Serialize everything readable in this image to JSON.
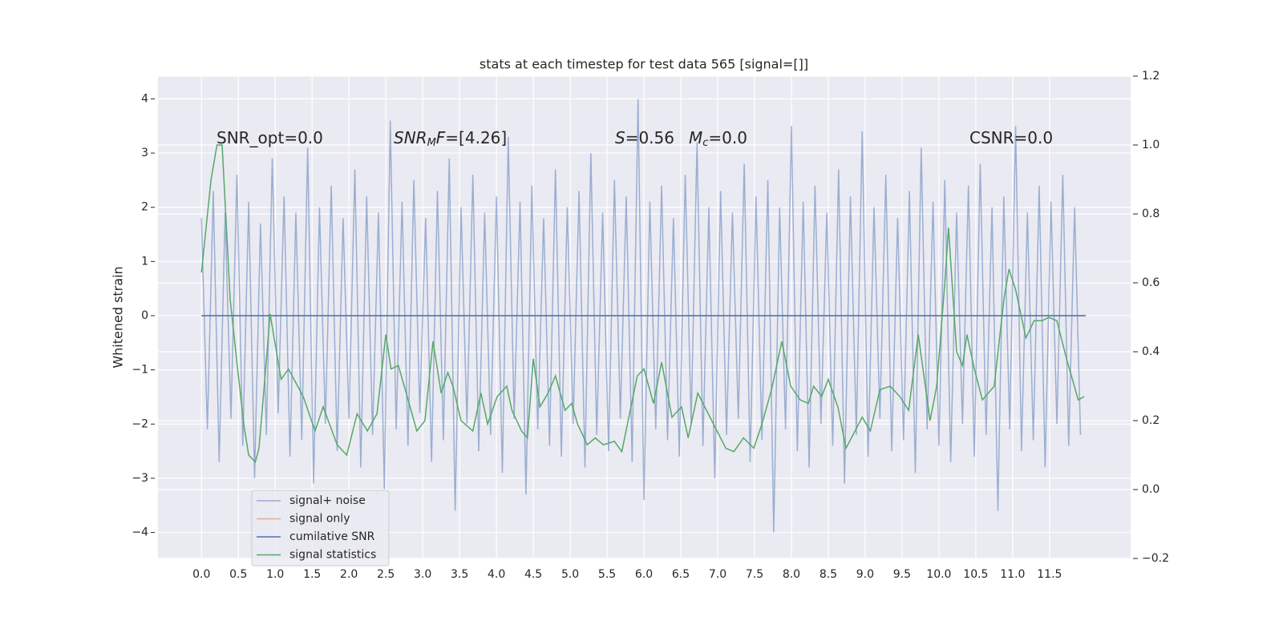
{
  "chart_data": {
    "type": "line",
    "title": "stats at each timestep for test data 565 [signal=[]]",
    "y_label": "Whitened strain",
    "xlim": [
      -0.59,
      12.6
    ],
    "ylim": [
      -4.48,
      4.42
    ],
    "y2lim": [
      -0.2,
      1.2
    ],
    "xticks": [
      {
        "value": 0,
        "label": "0.0"
      },
      0.5,
      {
        "value": 1,
        "label": "1.0"
      },
      1.5,
      {
        "value": 2,
        "label": "2.0"
      },
      2.5,
      {
        "value": 3,
        "label": "3.0"
      },
      3.5,
      {
        "value": 4,
        "label": "4.0"
      },
      4.5,
      {
        "value": 5,
        "label": "5.0"
      },
      5.5,
      {
        "value": 6,
        "label": "6.0"
      },
      6.5,
      {
        "value": 7,
        "label": "7.0"
      },
      7.5,
      {
        "value": 8,
        "label": "8.0"
      },
      8.5,
      {
        "value": 9,
        "label": "9.0"
      },
      9.5,
      {
        "value": 10,
        "label": "10.0"
      },
      10.5,
      {
        "value": 11,
        "label": "11.0"
      },
      11.5
    ],
    "yticks": [
      {
        "value": -4,
        "label": "−4"
      },
      {
        "value": -3,
        "label": "−3"
      },
      {
        "value": -2,
        "label": "−2"
      },
      {
        "value": -1,
        "label": "−1"
      },
      0,
      1,
      2,
      3,
      4
    ],
    "y2ticks": [
      {
        "value": -0.2,
        "label": "−0.2"
      },
      {
        "value": 0,
        "label": "0.0"
      },
      0.2,
      0.4,
      0.6,
      0.8,
      {
        "value": 1,
        "label": "1.0"
      },
      1.2
    ],
    "grid": true,
    "legend_loc": "lower left",
    "annotations": [
      {
        "parts": [
          {
            "text": "SNR_opt=0.0",
            "style": "normal"
          }
        ]
      },
      {
        "parts": [
          {
            "text": "SNR",
            "style": "italic"
          },
          {
            "text": "M",
            "style": "subscript"
          },
          {
            "text": "F",
            "style": "italic"
          },
          {
            "text": "=[4.26]",
            "style": "normal"
          }
        ]
      },
      {
        "parts": [
          {
            "text": "S",
            "style": "italic"
          },
          {
            "text": "=0.56",
            "style": "normal"
          }
        ]
      },
      {
        "parts": [
          {
            "text": "M",
            "style": "italic"
          },
          {
            "text": "c",
            "style": "subscript"
          },
          {
            "text": "=0.0",
            "style": "normal"
          }
        ]
      },
      {
        "parts": [
          {
            "text": "CSNR=0.0",
            "style": "normal"
          }
        ]
      }
    ],
    "series": [
      {
        "name": "signal+ noise",
        "color": "#4c72b0",
        "opacity": 0.5,
        "axis": "y",
        "x": [
          0,
          0.08,
          0.16,
          0.24,
          0.32,
          0.4,
          0.48,
          0.56,
          0.64,
          0.72,
          0.8,
          0.88,
          0.96,
          1.04,
          1.12,
          1.2,
          1.28,
          1.36,
          1.44,
          1.52,
          1.6,
          1.68,
          1.76,
          1.84,
          1.92,
          2,
          2.08,
          2.16,
          2.24,
          2.32,
          2.4,
          2.48,
          2.56,
          2.64,
          2.72,
          2.8,
          2.88,
          2.96,
          3.04,
          3.12,
          3.2,
          3.28,
          3.36,
          3.44,
          3.52,
          3.6,
          3.68,
          3.76,
          3.84,
          3.92,
          4,
          4.08,
          4.16,
          4.24,
          4.32,
          4.4,
          4.48,
          4.56,
          4.64,
          4.72,
          4.8,
          4.88,
          4.96,
          5.04,
          5.12,
          5.2,
          5.28,
          5.36,
          5.44,
          5.52,
          5.6,
          5.68,
          5.76,
          5.84,
          5.92,
          6,
          6.08,
          6.16,
          6.24,
          6.32,
          6.4,
          6.48,
          6.56,
          6.64,
          6.72,
          6.8,
          6.88,
          6.96,
          7.04,
          7.12,
          7.2,
          7.28,
          7.36,
          7.44,
          7.52,
          7.6,
          7.68,
          7.76,
          7.84,
          7.92,
          8,
          8.08,
          8.16,
          8.24,
          8.32,
          8.4,
          8.48,
          8.56,
          8.64,
          8.72,
          8.8,
          8.88,
          8.96,
          9.04,
          9.12,
          9.2,
          9.28,
          9.36,
          9.44,
          9.52,
          9.6,
          9.68,
          9.76,
          9.84,
          9.92,
          10,
          10.08,
          10.16,
          10.24,
          10.32,
          10.4,
          10.48,
          10.56,
          10.64,
          10.72,
          10.8,
          10.88,
          10.96,
          11.04,
          11.12,
          11.2,
          11.28,
          11.36,
          11.44,
          11.52,
          11.6,
          11.68,
          11.76,
          11.84,
          11.92
        ],
        "values": [
          1.8,
          -2.1,
          2.3,
          -2.7,
          1.9,
          -1.9,
          2.6,
          -2.4,
          2.1,
          -3.0,
          1.7,
          -2.2,
          2.9,
          -1.8,
          2.2,
          -2.6,
          1.9,
          -2.3,
          3.1,
          -3.1,
          2.0,
          -2.0,
          2.4,
          -2.5,
          1.8,
          -1.9,
          2.7,
          -2.8,
          2.2,
          -2.2,
          1.9,
          -3.2,
          3.6,
          -2.1,
          2.1,
          -2.4,
          2.5,
          -1.8,
          1.8,
          -2.7,
          2.3,
          -2.3,
          2.9,
          -3.6,
          2.0,
          -2.0,
          2.6,
          -2.5,
          1.9,
          -2.2,
          2.2,
          -2.9,
          3.3,
          -1.9,
          2.1,
          -3.3,
          2.4,
          -2.1,
          1.8,
          -2.4,
          2.7,
          -2.6,
          2.0,
          -2.0,
          2.3,
          -2.8,
          3.0,
          -2.2,
          1.9,
          -2.5,
          2.5,
          -1.9,
          2.2,
          -2.7,
          4.0,
          -3.4,
          2.1,
          -2.1,
          2.4,
          -2.3,
          1.8,
          -2.6,
          2.6,
          -2.0,
          3.2,
          -2.4,
          2.0,
          -3.0,
          2.3,
          -2.2,
          1.9,
          -1.9,
          2.8,
          -2.7,
          2.2,
          -2.3,
          2.5,
          -4.0,
          2.0,
          -2.1,
          3.5,
          -2.5,
          2.1,
          -2.8,
          2.4,
          -2.0,
          1.9,
          -2.4,
          2.7,
          -3.1,
          2.2,
          -2.2,
          3.4,
          -2.6,
          2.0,
          -1.9,
          2.6,
          -2.5,
          1.8,
          -2.3,
          2.3,
          -2.9,
          3.1,
          -2.1,
          2.1,
          -2.4,
          2.5,
          -2.7,
          1.9,
          -2.0,
          2.4,
          -2.6,
          2.8,
          -2.2,
          2.0,
          -3.6,
          2.2,
          -2.1,
          3.5,
          -2.5,
          1.9,
          -2.3,
          2.4,
          -2.8,
          2.1,
          -2.0,
          2.6,
          -2.4,
          2.0,
          -2.2
        ]
      },
      {
        "name": "signal only",
        "color": "#dd8452",
        "opacity": 0.6,
        "axis": "y",
        "x": [
          0,
          11.99
        ],
        "values": [
          0,
          0
        ]
      },
      {
        "name": "cumilative SNR",
        "color": "#4c72b0",
        "opacity": 1,
        "axis": "y",
        "x": [
          0,
          11.99
        ],
        "values": [
          0,
          0
        ]
      },
      {
        "name": "signal statistics",
        "color": "#55a868",
        "opacity": 1,
        "axis": "y2",
        "x": [
          0,
          0.13,
          0.21,
          0.28,
          0.39,
          0.49,
          0.58,
          0.64,
          0.73,
          0.78,
          0.89,
          0.93,
          1.08,
          1.18,
          1.38,
          1.54,
          1.65,
          1.84,
          1.97,
          2.11,
          2.25,
          2.38,
          2.5,
          2.57,
          2.67,
          2.79,
          2.92,
          3.03,
          3.14,
          3.25,
          3.34,
          3.41,
          3.52,
          3.68,
          3.79,
          3.88,
          4.01,
          4.14,
          4.21,
          4.34,
          4.42,
          4.5,
          4.59,
          4.7,
          4.8,
          4.93,
          5.02,
          5.1,
          5.23,
          5.34,
          5.45,
          5.6,
          5.7,
          5.91,
          6,
          6.13,
          6.24,
          6.38,
          6.51,
          6.6,
          6.73,
          6.92,
          7.11,
          7.22,
          7.35,
          7.49,
          7.6,
          7.73,
          7.87,
          7.99,
          8.12,
          8.23,
          8.3,
          8.41,
          8.5,
          8.63,
          8.74,
          8.96,
          9.07,
          9.2,
          9.34,
          9.47,
          9.59,
          9.72,
          9.88,
          9.97,
          10.08,
          10.13,
          10.24,
          10.32,
          10.38,
          10.48,
          10.59,
          10.75,
          10.88,
          10.95,
          11.04,
          11.18,
          11.29,
          11.4,
          11.49,
          11.6,
          11.73,
          11.89,
          11.97
        ],
        "values": [
          0.63,
          0.9,
          1.0,
          1.0,
          0.55,
          0.35,
          0.18,
          0.1,
          0.08,
          0.12,
          0.4,
          0.51,
          0.32,
          0.35,
          0.27,
          0.17,
          0.24,
          0.13,
          0.1,
          0.22,
          0.17,
          0.22,
          0.45,
          0.35,
          0.36,
          0.27,
          0.17,
          0.2,
          0.43,
          0.28,
          0.34,
          0.3,
          0.2,
          0.17,
          0.28,
          0.19,
          0.27,
          0.3,
          0.23,
          0.17,
          0.15,
          0.38,
          0.24,
          0.28,
          0.33,
          0.23,
          0.25,
          0.19,
          0.13,
          0.15,
          0.13,
          0.14,
          0.11,
          0.33,
          0.35,
          0.25,
          0.37,
          0.21,
          0.24,
          0.15,
          0.28,
          0.2,
          0.12,
          0.11,
          0.15,
          0.12,
          0.19,
          0.29,
          0.43,
          0.3,
          0.26,
          0.25,
          0.3,
          0.27,
          0.32,
          0.24,
          0.12,
          0.21,
          0.17,
          0.29,
          0.3,
          0.27,
          0.23,
          0.45,
          0.2,
          0.3,
          0.6,
          0.76,
          0.4,
          0.36,
          0.45,
          0.35,
          0.26,
          0.3,
          0.55,
          0.64,
          0.58,
          0.44,
          0.49,
          0.49,
          0.5,
          0.49,
          0.38,
          0.26,
          0.27
        ]
      }
    ]
  }
}
